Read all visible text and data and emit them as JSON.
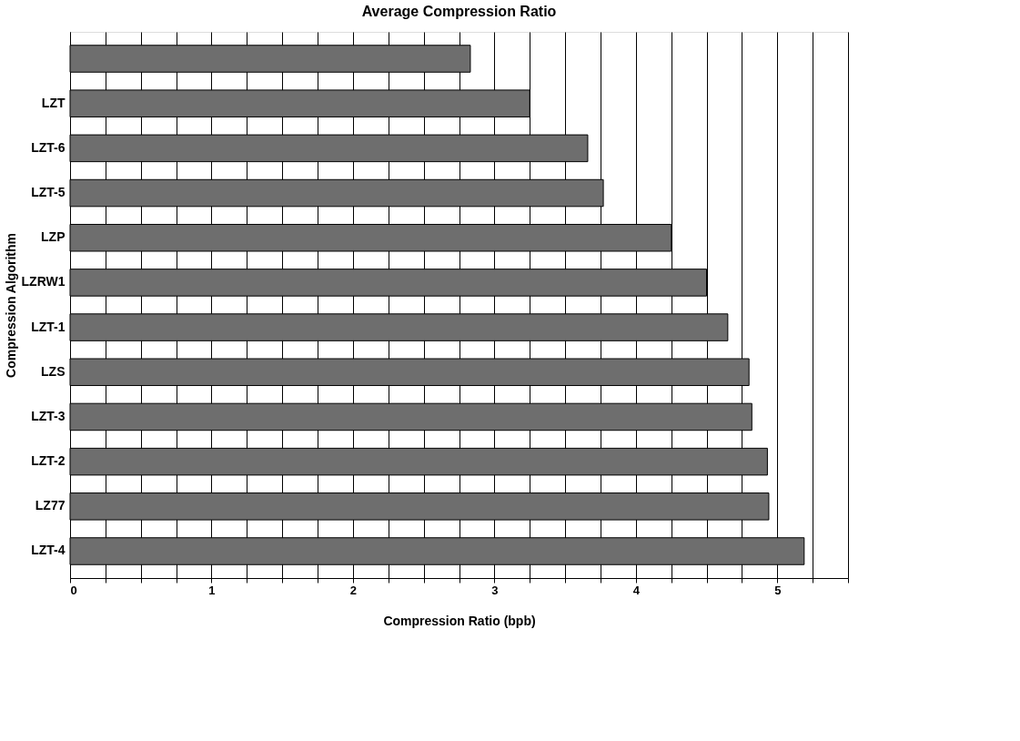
{
  "chart_data": {
    "type": "bar",
    "orientation": "horizontal",
    "title": "Average Compression Ratio",
    "xlabel": "Compression Ratio (bpb)",
    "ylabel": "Compression Algorithm",
    "categories": [
      null,
      "LZT",
      "LZT-6",
      "LZT-5",
      "LZP",
      "LZRW1",
      "LZT-1",
      "LZS",
      "LZT-3",
      "LZT-2",
      "LZ77",
      "LZT-4"
    ],
    "values": [
      2.83,
      3.25,
      3.66,
      3.77,
      4.25,
      4.5,
      4.65,
      4.8,
      4.82,
      4.93,
      4.94,
      5.19
    ],
    "color": "#6e6e6e",
    "xlim": [
      0,
      5.5
    ],
    "xticks": [
      0,
      {
        "value": 0.25,
        "label": null
      },
      {
        "value": 0.5,
        "label": null
      },
      {
        "value": 0.75,
        "label": null
      },
      1,
      {
        "value": 1.25,
        "label": null
      },
      {
        "value": 1.5,
        "label": null
      },
      {
        "value": 1.75,
        "label": null
      },
      2,
      {
        "value": 2.25,
        "label": null
      },
      {
        "value": 2.5,
        "label": null
      },
      {
        "value": 2.75,
        "label": null
      },
      3,
      {
        "value": 3.25,
        "label": null
      },
      {
        "value": 3.5,
        "label": null
      },
      {
        "value": 3.75,
        "label": null
      },
      4,
      {
        "value": 4.25,
        "label": null
      },
      {
        "value": 4.5,
        "label": null
      },
      {
        "value": 4.75,
        "label": null
      },
      5,
      {
        "value": 5.25,
        "label": null
      },
      {
        "value": 5.5,
        "label": null
      }
    ],
    "grid": "x"
  }
}
